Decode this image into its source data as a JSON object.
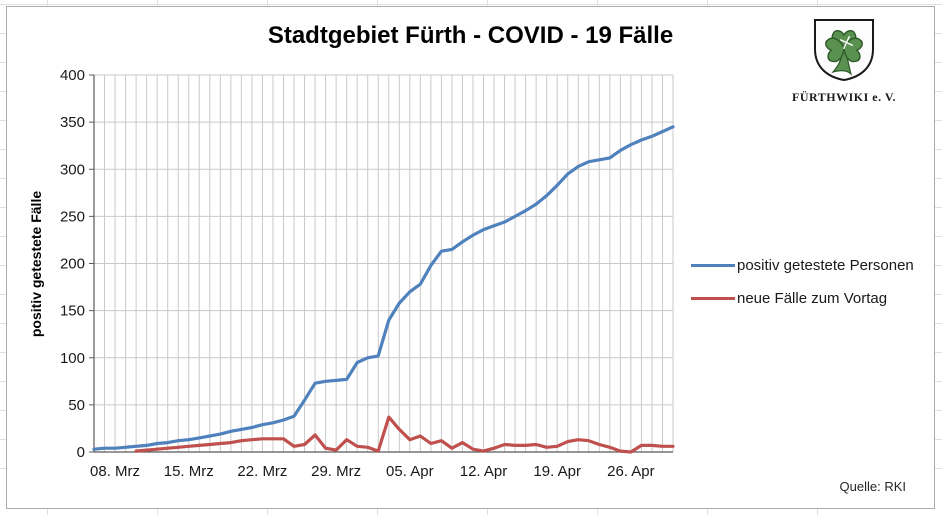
{
  "title": "Stadtgebiet Fürth - COVID - 19 Fälle",
  "source": "Quelle: RKI",
  "logo": {
    "icon": "fuerth-cloverleaf-shield",
    "text": "FÜRTHWIKI e. V."
  },
  "colors": {
    "series_positive": "#4F81BD",
    "series_new": "#C0504D",
    "gridline": "#c9c9c9",
    "axis": "#595959",
    "logo_green": "#5b9150",
    "logo_green_dark": "#2d5b28"
  },
  "chart_data": {
    "type": "line",
    "title": "Stadtgebiet Fürth - COVID - 19 Fälle",
    "xlabel": "",
    "ylabel": "positiv getestete Fälle",
    "ylim": [
      0,
      400
    ],
    "yticks": [
      0,
      50,
      100,
      150,
      200,
      250,
      300,
      350,
      400
    ],
    "grid": true,
    "legend_position": "right",
    "x": [
      "06. Mrz",
      "07. Mrz",
      "08. Mrz",
      "09. Mrz",
      "10. Mrz",
      "11. Mrz",
      "12. Mrz",
      "13. Mrz",
      "14. Mrz",
      "15. Mrz",
      "16. Mrz",
      "17. Mrz",
      "18. Mrz",
      "19. Mrz",
      "20. Mrz",
      "21. Mrz",
      "22. Mrz",
      "23. Mrz",
      "24. Mrz",
      "25. Mrz",
      "26. Mrz",
      "27. Mrz",
      "28. Mrz",
      "29. Mrz",
      "30. Mrz",
      "31. Mrz",
      "01. Apr",
      "02. Apr",
      "03. Apr",
      "04. Apr",
      "05. Apr",
      "06. Apr",
      "07. Apr",
      "08. Apr",
      "09. Apr",
      "10. Apr",
      "11. Apr",
      "12. Apr",
      "13. Apr",
      "14. Apr",
      "15. Apr",
      "16. Apr",
      "17. Apr",
      "18. Apr",
      "19. Apr",
      "20. Apr",
      "21. Apr",
      "22. Apr",
      "23. Apr",
      "24. Apr",
      "25. Apr",
      "26. Apr",
      "27. Apr",
      "28. Apr",
      "29. Apr",
      "30. Apr"
    ],
    "x_ticks": [
      {
        "i": 2,
        "label": "08. Mrz"
      },
      {
        "i": 9,
        "label": "15. Mrz"
      },
      {
        "i": 16,
        "label": "22. Mrz"
      },
      {
        "i": 23,
        "label": "29. Mrz"
      },
      {
        "i": 30,
        "label": "05. Apr"
      },
      {
        "i": 37,
        "label": "12. Apr"
      },
      {
        "i": 44,
        "label": "19. Apr"
      },
      {
        "i": 51,
        "label": "26. Apr"
      }
    ],
    "series": [
      {
        "name": "positiv getestete Personen",
        "color": "#4F81BD",
        "values": [
          3,
          4,
          4,
          5,
          6,
          7,
          9,
          10,
          12,
          13,
          15,
          17,
          19,
          22,
          24,
          26,
          29,
          31,
          34,
          38,
          55,
          73,
          75,
          76,
          77,
          95,
          100,
          102,
          140,
          158,
          170,
          178,
          198,
          213,
          215,
          223,
          230,
          236,
          240,
          244,
          250,
          256,
          263,
          272,
          283,
          295,
          303,
          308,
          310,
          312,
          320,
          326,
          331,
          335,
          340,
          345
        ]
      },
      {
        "name": "neue Fälle zum Vortag",
        "color": "#C0504D",
        "values": [
          null,
          null,
          null,
          null,
          1,
          2,
          3,
          4,
          5,
          6,
          7,
          8,
          9,
          10,
          12,
          13,
          14,
          14,
          14,
          6,
          8,
          18,
          4,
          2,
          13,
          6,
          5,
          1,
          37,
          24,
          13,
          17,
          9,
          12,
          4,
          10,
          3,
          1,
          4,
          8,
          7,
          7,
          8,
          5,
          6,
          11,
          13,
          12,
          8,
          5,
          1,
          0,
          7,
          7,
          6,
          6
        ]
      }
    ]
  }
}
